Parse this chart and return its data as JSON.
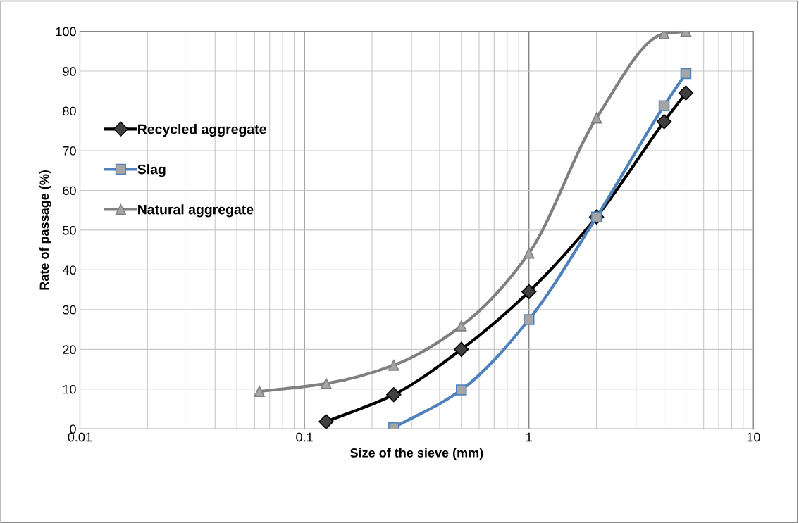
{
  "chart_data": {
    "type": "line",
    "xlabel": "Size of the sieve (mm)",
    "ylabel": "Rate of passage (%)",
    "log": "x",
    "xlim": [
      0.01,
      10
    ],
    "xticks": [
      0.01,
      0.1,
      1,
      10
    ],
    "ylim": [
      0,
      100
    ],
    "yticks": [
      0,
      10,
      20,
      30,
      40,
      50,
      60,
      70,
      80,
      90,
      100
    ],
    "grid": true,
    "legend": "left",
    "line_style": "solid",
    "series": [
      {
        "name": "Recycled aggregate",
        "color": "#000000",
        "marker": "diamond",
        "x": [
          0.125,
          0.25,
          0.5,
          1,
          2,
          4,
          5
        ],
        "values": [
          1.8,
          8.6,
          20,
          34.5,
          53.3,
          77.3,
          84.5
        ]
      },
      {
        "name": "Slag",
        "color": "#4f81bd",
        "marker": "square",
        "x": [
          0.25,
          0.5,
          1,
          2,
          4,
          5
        ],
        "values": [
          0.3,
          9.8,
          27.5,
          53.3,
          81.3,
          89.4
        ]
      },
      {
        "name": "Natural aggregate",
        "color": "#808080",
        "marker": "triangle",
        "x": [
          0.063,
          0.125,
          0.25,
          0.5,
          1,
          2,
          4,
          5
        ],
        "values": [
          9.4,
          11.4,
          16,
          25.9,
          44.2,
          78.2,
          99.4,
          100
        ]
      }
    ]
  }
}
